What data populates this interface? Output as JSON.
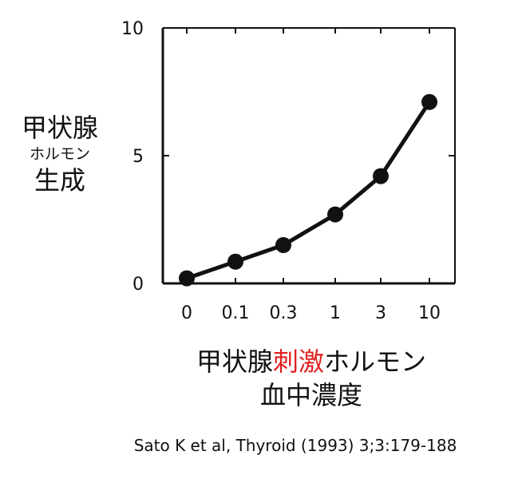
{
  "chart_data": {
    "type": "line",
    "title": "",
    "categories": [
      "0",
      "0.1",
      "0.3",
      "1",
      "3",
      "10"
    ],
    "series": [
      {
        "values": [
          0.2,
          0.85,
          1.5,
          2.7,
          4.2,
          7.1
        ]
      }
    ],
    "ylim": [
      0,
      10
    ],
    "yticks": [
      "0",
      "5",
      "10"
    ],
    "ylabel_lines": [
      "甲状腺",
      "ホルモン",
      "生成"
    ],
    "xlabel": {
      "part1": "甲状腺",
      "highlight": "刺激",
      "part2": "ホルモン",
      "line2": "血中濃度"
    },
    "grid": false,
    "colors": {
      "series": "#111111",
      "highlight": "#e0201e",
      "axis": "#111111"
    }
  },
  "citation": "Sato K et al, Thyroid (1993) 3;3:179-188"
}
